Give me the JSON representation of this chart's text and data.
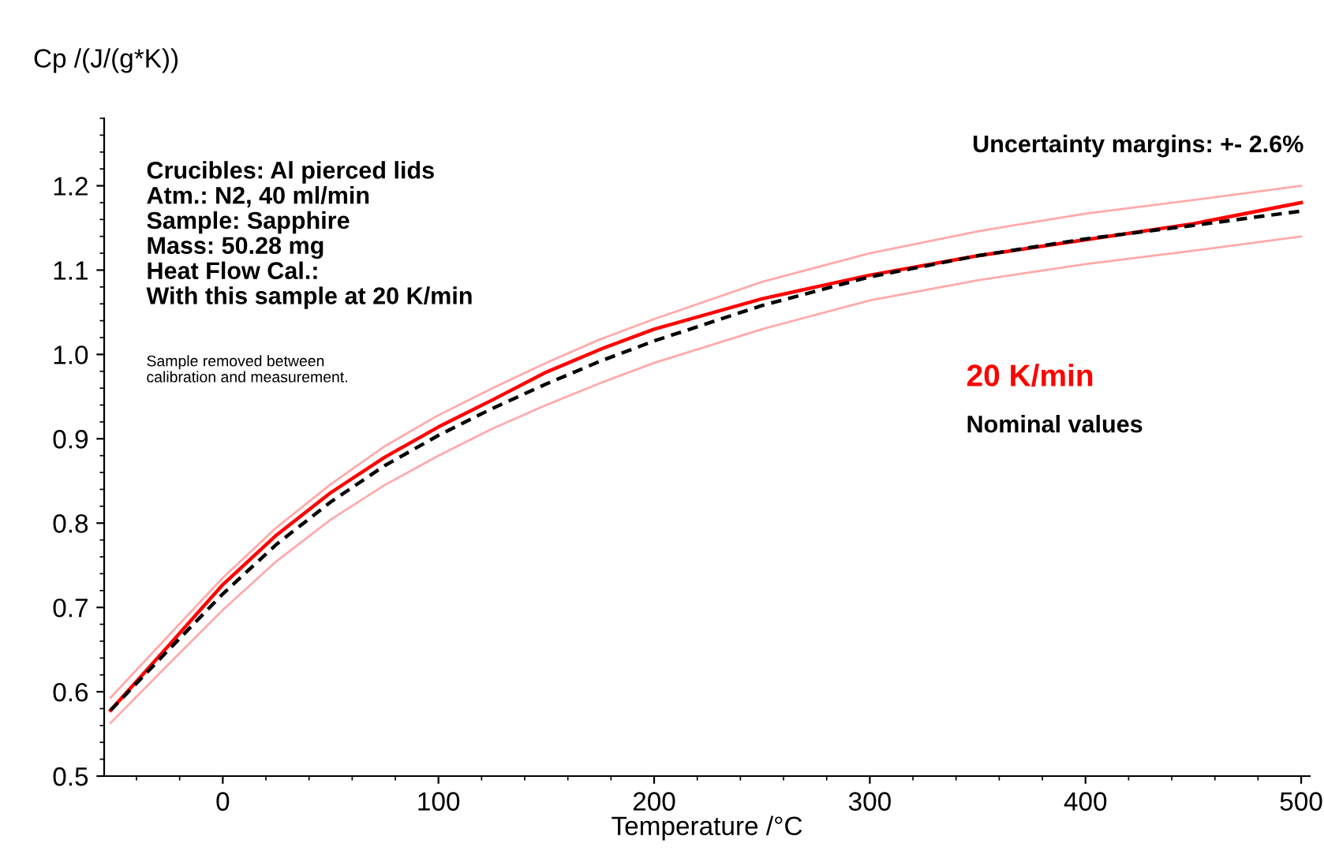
{
  "chart_data": {
    "type": "line",
    "ylabel": "Cp /(J/(g*K))",
    "xlabel": "Temperature /°C",
    "xlim": [
      -55,
      504
    ],
    "xticks": [
      0,
      100,
      200,
      300,
      400,
      500
    ],
    "ylim": [
      0.5,
      1.28
    ],
    "yticks": [
      0.5,
      0.6,
      0.7,
      0.8,
      0.9,
      {
        "value": 1,
        "label": "1.0"
      },
      1.1,
      1.2
    ],
    "grid": false,
    "legend": false,
    "x": [
      -52,
      -25,
      0,
      25,
      50,
      75,
      100,
      125,
      150,
      175,
      200,
      250,
      300,
      350,
      400,
      450,
      500
    ],
    "series": [
      {
        "name": "20 K/min",
        "color": "#ff0000",
        "line_style": "solid",
        "values": [
          0.578,
          0.655,
          0.727,
          0.786,
          0.836,
          0.878,
          0.914,
          0.946,
          0.979,
          1.006,
          1.03,
          1.066,
          1.094,
          1.117,
          1.136,
          1.155,
          1.18
        ]
      },
      {
        "name": "Nominal values",
        "color": "#000000",
        "line_style": "dashed",
        "values": [
          0.578,
          0.65,
          0.716,
          0.775,
          0.825,
          0.868,
          0.904,
          0.936,
          0.965,
          0.992,
          1.016,
          1.058,
          1.092,
          1.117,
          1.137,
          1.153,
          1.17
        ]
      },
      {
        "color": "#ffaaaa",
        "line_style": "solid",
        "values": [
          0.593,
          0.667,
          0.735,
          0.795,
          0.846,
          0.891,
          0.928,
          0.96,
          0.99,
          1.018,
          1.042,
          1.086,
          1.12,
          1.146,
          1.167,
          1.183,
          1.2
        ]
      },
      {
        "color": "#ffaaaa",
        "line_style": "solid",
        "values": [
          0.563,
          0.633,
          0.697,
          0.755,
          0.804,
          0.845,
          0.88,
          0.912,
          0.94,
          0.966,
          0.99,
          1.03,
          1.064,
          1.088,
          1.107,
          1.123,
          1.14
        ]
      }
    ],
    "annotations": [
      "Crucibles: Al pierced lids\nAtm.: N2, 40 ml/min\nSample: Sapphire\nMass: 50.28 mg\nHeat Flow Cal.:\nWith this sample at 20 K/min",
      "Sample removed between\ncalibration and measurement.",
      "Uncertainty margins: +- 2.6%"
    ]
  }
}
